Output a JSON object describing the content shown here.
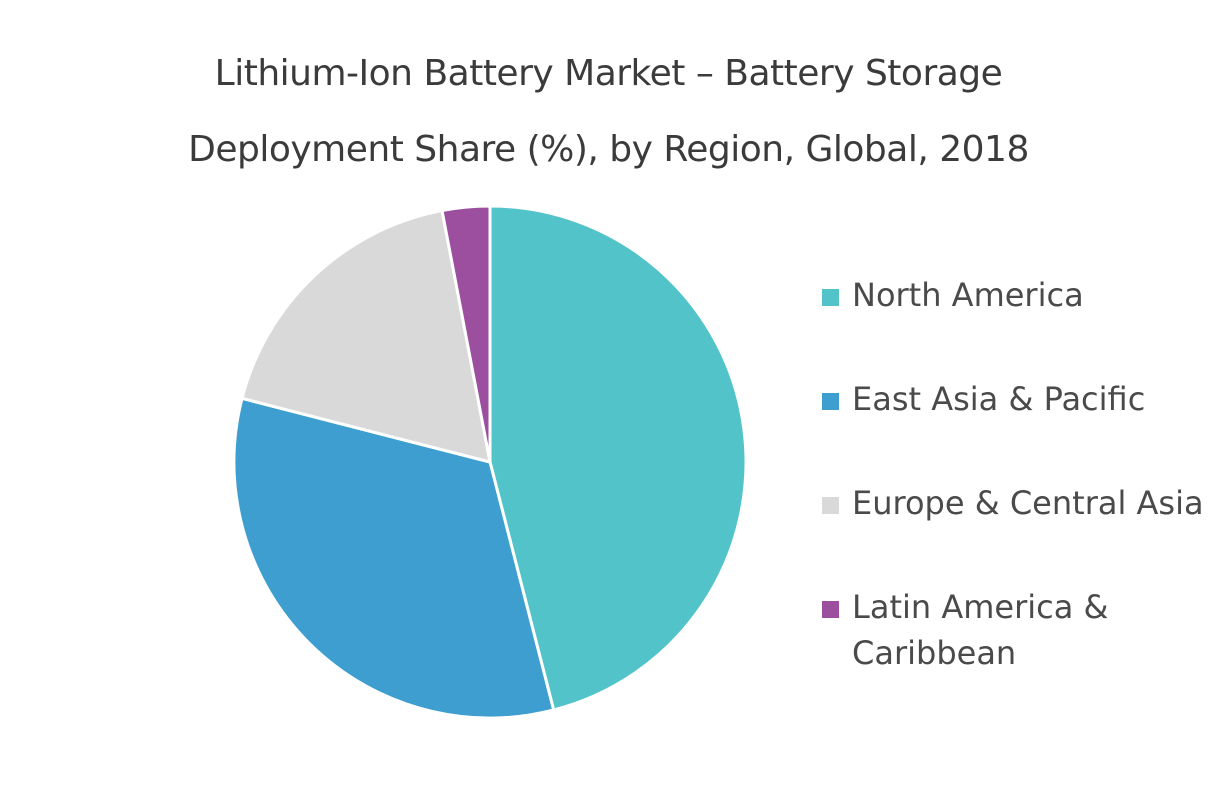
{
  "chart_data": {
    "type": "pie",
    "title_line1": "Lithium-Ion Battery Market – Battery Storage",
    "title_line2": "Deployment Share (%), by Region, Global, 2018",
    "unit": "%",
    "series": [
      {
        "name": "North America",
        "value": 46,
        "color": "#52c4c9"
      },
      {
        "name": "East Asia & Pacific",
        "value": 33,
        "color": "#3d9ecf"
      },
      {
        "name": "Europe & Central Asia",
        "value": 18,
        "color": "#d9d9d9"
      },
      {
        "name": "Latin America & Caribbean",
        "value": 3,
        "color": "#9b4f9e"
      }
    ],
    "legend_position": "right",
    "start_angle": "12 o'clock",
    "direction": "clockwise"
  }
}
